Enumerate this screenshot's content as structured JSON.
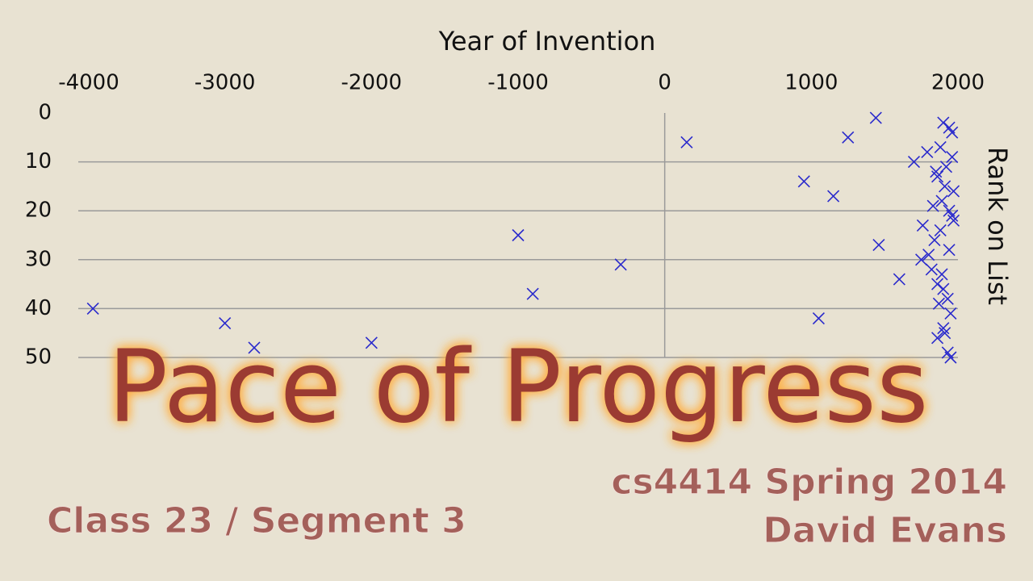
{
  "chart_data": {
    "type": "scatter",
    "title": "Pace of Progress",
    "x_label": "Year of Invention",
    "y_label": "Rank on List",
    "x": [
      -3900,
      -3000,
      -2800,
      -2000,
      -1000,
      -900,
      -300,
      150,
      950,
      1050,
      1150,
      1250,
      1440,
      1460,
      1600,
      1700,
      1760,
      1750,
      1790,
      1800,
      1820,
      1830,
      1840,
      1850,
      1860,
      1860,
      1870,
      1860,
      1880,
      1880,
      1890,
      1890,
      1900,
      1900,
      1900,
      1910,
      1910,
      1920,
      1930,
      1930,
      1940,
      1940,
      1940,
      1950,
      1950,
      1960,
      1960,
      1960,
      1970,
      1970
    ],
    "values": [
      40,
      43,
      48,
      47,
      25,
      37,
      31,
      6,
      14,
      42,
      17,
      5,
      1,
      27,
      34,
      10,
      23,
      30,
      8,
      29,
      32,
      19,
      26,
      12,
      13,
      35,
      39,
      46,
      7,
      24,
      33,
      18,
      2,
      36,
      44,
      15,
      45,
      11,
      38,
      49,
      3,
      20,
      28,
      41,
      50,
      4,
      9,
      21,
      16,
      22
    ],
    "color": "#2a2acc",
    "xlim": [
      -4000,
      2000
    ],
    "xticks": [
      -4000,
      -3000,
      -2000,
      -1000,
      0,
      1000,
      2000
    ],
    "ylim": [
      0,
      50
    ],
    "yticks": [
      0,
      10,
      20,
      30,
      40,
      50
    ],
    "y_inverted": true,
    "grid": true
  },
  "footer": {
    "course": "cs4414 Spring 2014",
    "author": "David Evans",
    "segment": "Class 23 / Segment 3"
  }
}
